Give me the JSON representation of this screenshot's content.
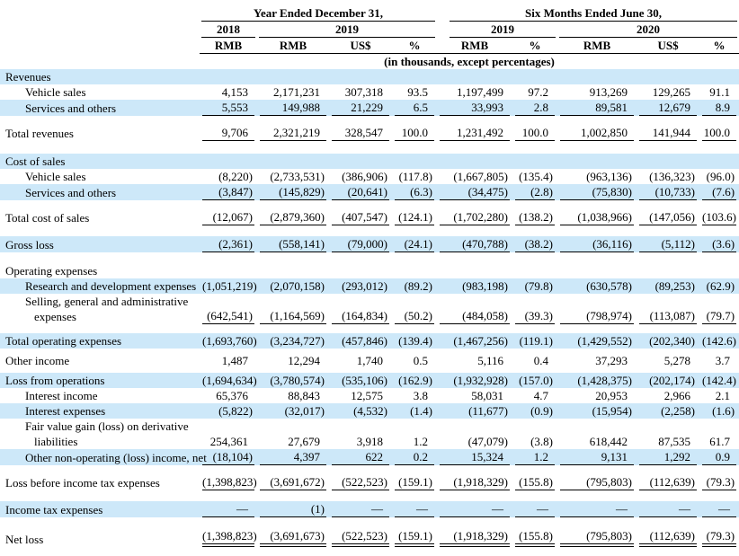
{
  "table": {
    "header": {
      "annual": "Year Ended December 31,",
      "six_months": "Six Months Ended June 30,",
      "years": [
        "2018",
        "2019",
        "2019",
        "2020"
      ],
      "units": [
        "RMB",
        "RMB",
        "US$",
        "%",
        "RMB",
        "%",
        "RMB",
        "US$",
        "%"
      ],
      "note": "(in thousands, except percentages)"
    },
    "colors": {
      "highlight_row": "#cde8f9",
      "text": "#000000",
      "rule": "#000000"
    },
    "rows": [
      {
        "label": "Revenues",
        "blue": true,
        "values": [
          "",
          "",
          "",
          "",
          "",
          "",
          "",
          "",
          ""
        ]
      },
      {
        "label": "Vehicle sales",
        "indent": 1,
        "values": [
          "4,153",
          "2,171,231",
          "307,318",
          "93.5",
          "1,197,499",
          "97.2",
          "913,269",
          "129,265",
          "91.1"
        ]
      },
      {
        "label": "Services and others",
        "blue": true,
        "indent": 1,
        "rule": "single",
        "values": [
          "5,553",
          "149,988",
          "21,229",
          "6.5",
          "33,993",
          "2.8",
          "89,581",
          "12,679",
          "8.9"
        ]
      },
      {
        "spacer": 10
      },
      {
        "label": "Total revenues",
        "bold": true,
        "rule": "single",
        "values": [
          "9,706",
          "2,321,219",
          "328,547",
          "100.0",
          "1,231,492",
          "100.0",
          "1,002,850",
          "141,944",
          "100.0"
        ]
      },
      {
        "spacer": 14
      },
      {
        "label": "Cost of sales",
        "blue": true,
        "values": [
          "",
          "",
          "",
          "",
          "",
          "",
          "",
          "",
          ""
        ]
      },
      {
        "label": "Vehicle sales",
        "indent": 1,
        "values": [
          "(8,220)",
          "(2,733,531)",
          "(386,906)",
          "(117.8)",
          "(1,667,805)",
          "(135.4)",
          "(963,136)",
          "(136,323)",
          "(96.0)"
        ]
      },
      {
        "label": "Services and others",
        "blue": true,
        "indent": 1,
        "rule": "single",
        "values": [
          "(3,847)",
          "(145,829)",
          "(20,641)",
          "(6.3)",
          "(34,475)",
          "(2.8)",
          "(75,830)",
          "(10,733)",
          "(7.6)"
        ]
      },
      {
        "spacer": 10
      },
      {
        "label": "Total cost of sales",
        "bold": true,
        "rule": "single",
        "values": [
          "(12,067)",
          "(2,879,360)",
          "(407,547)",
          "(124.1)",
          "(1,702,280)",
          "(138.2)",
          "(1,038,966)",
          "(147,056)",
          "(103.6)"
        ]
      },
      {
        "spacer": 12
      },
      {
        "label": "Gross loss",
        "blue": true,
        "bold": true,
        "rule": "single",
        "values": [
          "(2,361)",
          "(558,141)",
          "(79,000)",
          "(24.1)",
          "(470,788)",
          "(38.2)",
          "(36,116)",
          "(5,112)",
          "(3.6)"
        ]
      },
      {
        "spacer": 12
      },
      {
        "label": "Operating expenses",
        "bold": true,
        "values": [
          "",
          "",
          "",
          "",
          "",
          "",
          "",
          "",
          ""
        ]
      },
      {
        "label": "Research and development expenses",
        "blue": true,
        "indent": 1,
        "values": [
          "(1,051,219)",
          "(2,070,158)",
          "(293,012)",
          "(89.2)",
          "(983,198)",
          "(79.8)",
          "(630,578)",
          "(89,253)",
          "(62.9)"
        ]
      },
      {
        "label": "Selling, general and administrative",
        "label2": "expenses",
        "indent": 1,
        "rule": "single",
        "values": [
          "(642,541)",
          "(1,164,569)",
          "(164,834)",
          "(50.2)",
          "(484,058)",
          "(39.3)",
          "(798,974)",
          "(113,087)",
          "(79.7)"
        ]
      },
      {
        "spacer": 10
      },
      {
        "label": "Total operating expenses",
        "blue": true,
        "bold": true,
        "values": [
          "(1,693,760)",
          "(3,234,727)",
          "(457,846)",
          "(139.4)",
          "(1,467,256)",
          "(119.1)",
          "(1,429,552)",
          "(202,340)",
          "(142.6)"
        ]
      },
      {
        "spacer": 5
      },
      {
        "label": "Other income",
        "values": [
          "1,487",
          "12,294",
          "1,740",
          "0.5",
          "5,116",
          "0.4",
          "37,293",
          "5,278",
          "3.7"
        ]
      },
      {
        "spacer": 5
      },
      {
        "label": "Loss from operations",
        "blue": true,
        "bold": true,
        "values": [
          "(1,694,634)",
          "(3,780,574)",
          "(535,106)",
          "(162.9)",
          "(1,932,928)",
          "(157.0)",
          "(1,428,375)",
          "(202,174)",
          "(142.4)"
        ]
      },
      {
        "label": "Interest income",
        "indent": 1,
        "values": [
          "65,376",
          "88,843",
          "12,575",
          "3.8",
          "58,031",
          "4.7",
          "20,953",
          "2,966",
          "2.1"
        ]
      },
      {
        "label": "Interest expenses",
        "blue": true,
        "indent": 1,
        "values": [
          "(5,822)",
          "(32,017)",
          "(4,532)",
          "(1.4)",
          "(11,677)",
          "(0.9)",
          "(15,954)",
          "(2,258)",
          "(1.6)"
        ]
      },
      {
        "label": "Fair value gain (loss) on derivative",
        "label2": "liabilities",
        "indent": 1,
        "values": [
          "254,361",
          "27,679",
          "3,918",
          "1.2",
          "(47,079)",
          "(3.8)",
          "618,442",
          "87,535",
          "61.7"
        ]
      },
      {
        "label": "Other non-operating (loss) income, net",
        "blue": true,
        "indent": 1,
        "rule": "single",
        "values": [
          "(18,104)",
          "4,397",
          "622",
          "0.2",
          "15,324",
          "1.2",
          "9,131",
          "1,292",
          "0.9"
        ]
      },
      {
        "spacer": 10
      },
      {
        "label": "Loss before income tax expenses",
        "bold": true,
        "rule": "single",
        "values": [
          "(1,398,823)",
          "(3,691,672)",
          "(522,523)",
          "(159.1)",
          "(1,918,329)",
          "(155.8)",
          "(795,803)",
          "(112,639)",
          "(79.3)"
        ]
      },
      {
        "spacer": 12
      },
      {
        "label": "Income tax expenses",
        "blue": true,
        "rule": "single",
        "values": [
          "—",
          "(1)",
          "—",
          "—",
          "—",
          "—",
          "—",
          "—",
          "—"
        ]
      },
      {
        "spacer": 12
      },
      {
        "label": "Net loss",
        "bold": true,
        "rule": "double",
        "values": [
          "(1,398,823)",
          "(3,691,673)",
          "(522,523)",
          "(159.1)",
          "(1,918,329)",
          "(155.8)",
          "(795,803)",
          "(112,639)",
          "(79.3)"
        ]
      }
    ]
  }
}
